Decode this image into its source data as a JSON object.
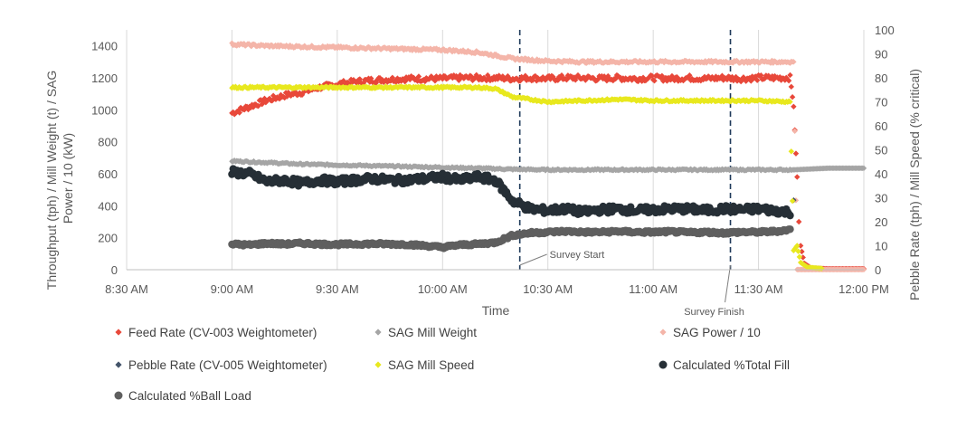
{
  "chart_data": {
    "type": "scatter",
    "xlabel": "Time",
    "ylabel_left": "Throughput (tph) / Mill Weight (t) / SAG Power / 10 (kW)",
    "ylabel_left_lines": [
      "Throughput (tph) / Mill Weight (t) / SAG",
      "Power / 10 (kW)"
    ],
    "ylabel_right": "Pebble Rate (tph) / Mill Speed (% critical)",
    "x_ticks": [
      "8:30 AM",
      "9:00 AM",
      "9:30 AM",
      "10:00 AM",
      "10:30 AM",
      "11:00 AM",
      "11:30 AM",
      "12:00 PM"
    ],
    "x_tick_minutes": [
      510,
      540,
      570,
      600,
      630,
      660,
      690,
      720
    ],
    "xlim_minutes": [
      510,
      720
    ],
    "ylim_left": [
      0,
      1500
    ],
    "y_ticks_left": [
      "0",
      "200",
      "400",
      "600",
      "800",
      "1000",
      "1200",
      "1400"
    ],
    "ylim_right": [
      0,
      100
    ],
    "y_ticks_right": [
      "0",
      "10",
      "20",
      "30",
      "40",
      "50",
      "60",
      "70",
      "80",
      "90",
      "100"
    ],
    "grid": "vertical",
    "legend_position": "bottom",
    "annotations": [
      {
        "label": "Survey Start",
        "x_minutes": 622
      },
      {
        "label": "Survey Finish",
        "x_minutes": 682
      }
    ],
    "series": [
      {
        "name": "Feed Rate (CV-003 Weightometer)",
        "color": "#e8483a",
        "axis": "left",
        "marker": "diamond",
        "points": [
          [
            540,
            980
          ],
          [
            545,
            1020
          ],
          [
            550,
            1060
          ],
          [
            555,
            1090
          ],
          [
            560,
            1110
          ],
          [
            565,
            1140
          ],
          [
            570,
            1160
          ],
          [
            575,
            1175
          ],
          [
            580,
            1185
          ],
          [
            585,
            1190
          ],
          [
            590,
            1195
          ],
          [
            595,
            1195
          ],
          [
            600,
            1195
          ],
          [
            605,
            1200
          ],
          [
            610,
            1200
          ],
          [
            615,
            1200
          ],
          [
            620,
            1195
          ],
          [
            625,
            1200
          ],
          [
            630,
            1195
          ],
          [
            635,
            1200
          ],
          [
            640,
            1200
          ],
          [
            645,
            1195
          ],
          [
            650,
            1200
          ],
          [
            655,
            1195
          ],
          [
            660,
            1200
          ],
          [
            665,
            1195
          ],
          [
            670,
            1200
          ],
          [
            675,
            1195
          ],
          [
            680,
            1200
          ],
          [
            685,
            1195
          ],
          [
            690,
            1200
          ],
          [
            695,
            1200
          ],
          [
            699,
            1200
          ],
          [
            700,
            1020
          ],
          [
            701,
            580
          ],
          [
            701.5,
            300
          ],
          [
            702,
            150
          ],
          [
            703,
            40
          ],
          [
            705,
            10
          ],
          [
            710,
            5
          ],
          [
            715,
            5
          ],
          [
            720,
            5
          ]
        ]
      },
      {
        "name": "SAG Mill Weight",
        "color": "#a5a5a5",
        "axis": "left",
        "marker": "diamond",
        "points": [
          [
            540,
            680
          ],
          [
            550,
            670
          ],
          [
            560,
            660
          ],
          [
            570,
            655
          ],
          [
            580,
            650
          ],
          [
            590,
            645
          ],
          [
            600,
            640
          ],
          [
            610,
            635
          ],
          [
            620,
            628
          ],
          [
            630,
            625
          ],
          [
            640,
            625
          ],
          [
            650,
            625
          ],
          [
            660,
            625
          ],
          [
            670,
            625
          ],
          [
            680,
            625
          ],
          [
            690,
            625
          ],
          [
            700,
            625
          ],
          [
            705,
            630
          ],
          [
            710,
            635
          ],
          [
            715,
            635
          ],
          [
            720,
            635
          ]
        ]
      },
      {
        "name": "SAG Power / 10",
        "color": "#f4b5a9",
        "axis": "left",
        "marker": "diamond",
        "points": [
          [
            540,
            1410
          ],
          [
            550,
            1400
          ],
          [
            560,
            1395
          ],
          [
            570,
            1390
          ],
          [
            580,
            1385
          ],
          [
            590,
            1380
          ],
          [
            600,
            1375
          ],
          [
            610,
            1360
          ],
          [
            620,
            1320
          ],
          [
            630,
            1305
          ],
          [
            640,
            1300
          ],
          [
            650,
            1300
          ],
          [
            660,
            1300
          ],
          [
            670,
            1300
          ],
          [
            680,
            1300
          ],
          [
            690,
            1300
          ],
          [
            698,
            1300
          ],
          [
            700,
            1300
          ],
          [
            701,
            1
          ],
          [
            710,
            1
          ],
          [
            720,
            1
          ]
        ]
      },
      {
        "name": "Pebble Rate (CV-005 Weightometer)",
        "color": "#44546a",
        "axis": "right",
        "marker": "diamond",
        "points": [
          [
            700,
            29
          ]
        ]
      },
      {
        "name": "SAG Mill Speed",
        "color": "#e8e81e",
        "axis": "right",
        "marker": "diamond",
        "points": [
          [
            540,
            76
          ],
          [
            550,
            76
          ],
          [
            560,
            76
          ],
          [
            570,
            76
          ],
          [
            580,
            76
          ],
          [
            590,
            76
          ],
          [
            600,
            76
          ],
          [
            610,
            76
          ],
          [
            615,
            75.5
          ],
          [
            620,
            72
          ],
          [
            625,
            71
          ],
          [
            630,
            70
          ],
          [
            640,
            70.5
          ],
          [
            650,
            71
          ],
          [
            660,
            70.5
          ],
          [
            670,
            70.5
          ],
          [
            680,
            70.5
          ],
          [
            690,
            70.5
          ],
          [
            699,
            70
          ],
          [
            700,
            8
          ],
          [
            701,
            10
          ],
          [
            702,
            3
          ],
          [
            704,
            1
          ],
          [
            708,
            0.5
          ]
        ]
      },
      {
        "name": "Calculated %Total Fill",
        "color": "#262f36",
        "axis": "left",
        "marker": "circle",
        "points": [
          [
            540,
            610
          ],
          [
            545,
            600
          ],
          [
            550,
            550
          ],
          [
            555,
            560
          ],
          [
            560,
            540
          ],
          [
            565,
            560
          ],
          [
            570,
            550
          ],
          [
            575,
            560
          ],
          [
            580,
            570
          ],
          [
            585,
            560
          ],
          [
            590,
            560
          ],
          [
            595,
            570
          ],
          [
            600,
            580
          ],
          [
            605,
            560
          ],
          [
            610,
            580
          ],
          [
            615,
            560
          ],
          [
            620,
            430
          ],
          [
            625,
            380
          ],
          [
            630,
            370
          ],
          [
            635,
            380
          ],
          [
            640,
            360
          ],
          [
            645,
            375
          ],
          [
            650,
            380
          ],
          [
            655,
            370
          ],
          [
            660,
            375
          ],
          [
            665,
            380
          ],
          [
            670,
            380
          ],
          [
            675,
            370
          ],
          [
            680,
            380
          ],
          [
            685,
            375
          ],
          [
            690,
            380
          ],
          [
            695,
            370
          ],
          [
            699,
            360
          ]
        ]
      },
      {
        "name": "Calculated %Ball Load",
        "color": "#5f5f5f",
        "axis": "left",
        "marker": "circle",
        "points": [
          [
            540,
            160
          ],
          [
            545,
            155
          ],
          [
            550,
            165
          ],
          [
            555,
            160
          ],
          [
            560,
            165
          ],
          [
            565,
            160
          ],
          [
            570,
            158
          ],
          [
            575,
            160
          ],
          [
            580,
            162
          ],
          [
            585,
            160
          ],
          [
            590,
            158
          ],
          [
            595,
            150
          ],
          [
            600,
            140
          ],
          [
            605,
            155
          ],
          [
            610,
            160
          ],
          [
            615,
            170
          ],
          [
            620,
            215
          ],
          [
            625,
            230
          ],
          [
            630,
            235
          ],
          [
            635,
            240
          ],
          [
            640,
            235
          ],
          [
            645,
            235
          ],
          [
            650,
            240
          ],
          [
            655,
            235
          ],
          [
            660,
            235
          ],
          [
            665,
            238
          ],
          [
            670,
            232
          ],
          [
            675,
            235
          ],
          [
            680,
            230
          ],
          [
            685,
            235
          ],
          [
            690,
            235
          ],
          [
            695,
            240
          ],
          [
            699,
            250
          ]
        ]
      }
    ]
  }
}
